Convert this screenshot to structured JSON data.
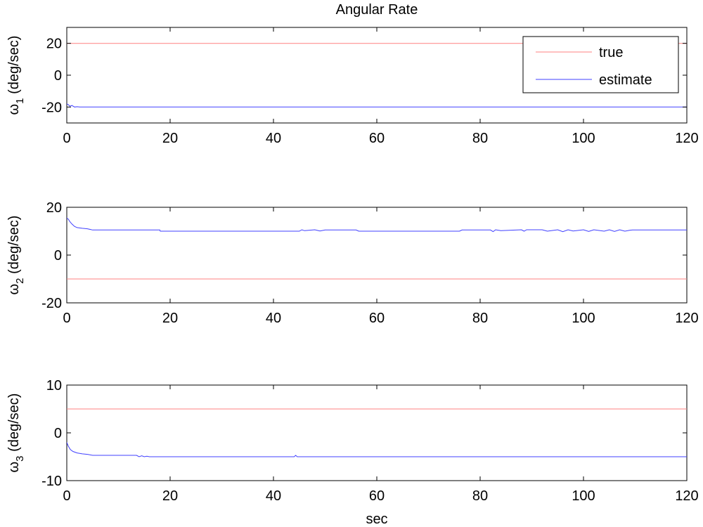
{
  "chart_data": {
    "type": "line",
    "title": "Angular Rate",
    "xlabel": "sec",
    "colors": {
      "true": "#ff8080",
      "estimate": "#4040ff",
      "axis": "#000000"
    },
    "legend": {
      "placement": "top-right",
      "entries": [
        "true",
        "estimate"
      ]
    },
    "panels": [
      {
        "ylabel_symbol": "ω",
        "ylabel_sub": "1",
        "ylabel_unit": "(deg/sec)",
        "xlim": [
          0,
          120
        ],
        "ylim": [
          -30,
          30
        ],
        "xticks": [
          0,
          20,
          40,
          60,
          80,
          100,
          120
        ],
        "yticks": [
          20,
          0,
          -20
        ],
        "series": [
          {
            "name": "true",
            "x": [
              0,
              120
            ],
            "y": [
              20,
              20
            ]
          },
          {
            "name": "estimate",
            "x": [
              0,
              0.3,
              0.6,
              1.0,
              1.5,
              2.0,
              2.5,
              120
            ],
            "y": [
              -18,
              -18.5,
              -19.5,
              -19.0,
              -20.0,
              -19.8,
              -20.0,
              -20.0
            ]
          }
        ]
      },
      {
        "ylabel_symbol": "ω",
        "ylabel_sub": "2",
        "ylabel_unit": "(deg/sec)",
        "xlim": [
          0,
          120
        ],
        "ylim": [
          -20,
          20
        ],
        "xticks": [
          0,
          20,
          40,
          60,
          80,
          100,
          120
        ],
        "yticks": [
          20,
          0,
          -20
        ],
        "series": [
          {
            "name": "true",
            "x": [
              0,
              120
            ],
            "y": [
              -10,
              -10
            ]
          },
          {
            "name": "estimate",
            "x": [
              0,
              0.3,
              0.6,
              1.0,
              1.5,
              2.0,
              3.0,
              4.0,
              5.0,
              18.0,
              18.1,
              45.0,
              45.5,
              46.0,
              48.0,
              49.0,
              50.0,
              56.0,
              56.5,
              57.0,
              76.0,
              76.5,
              82.0,
              82.5,
              83.0,
              84.0,
              88.0,
              88.5,
              89.0,
              92.0,
              93.0,
              95.0,
              96.0,
              97.0,
              98.0,
              100.0,
              101.0,
              102.0,
              104.0,
              105.0,
              106.0,
              107.0,
              108.0,
              109.0,
              109.5,
              120
            ],
            "y": [
              15.5,
              15.0,
              14.0,
              13.0,
              12.0,
              11.5,
              11.2,
              11.0,
              10.5,
              10.5,
              10.0,
              10.0,
              10.6,
              10.2,
              10.6,
              10.1,
              10.5,
              10.5,
              10.0,
              10.0,
              10.0,
              10.5,
              10.5,
              9.8,
              10.6,
              10.2,
              10.6,
              10.0,
              10.6,
              10.6,
              10.0,
              10.6,
              9.8,
              10.6,
              10.1,
              10.6,
              9.9,
              10.6,
              10.0,
              10.6,
              9.9,
              10.6,
              10.0,
              10.4,
              10.5,
              10.5
            ]
          }
        ]
      },
      {
        "ylabel_symbol": "ω",
        "ylabel_sub": "3",
        "ylabel_unit": "(deg/sec)",
        "xlim": [
          0,
          120
        ],
        "ylim": [
          -10,
          10
        ],
        "xticks": [
          0,
          20,
          40,
          60,
          80,
          100,
          120
        ],
        "yticks": [
          10,
          0,
          -10
        ],
        "series": [
          {
            "name": "true",
            "x": [
              0,
              120
            ],
            "y": [
              5,
              5
            ]
          },
          {
            "name": "estimate",
            "x": [
              0,
              0.3,
              0.7,
              1.2,
              2.0,
              3.0,
              4.0,
              5.0,
              13.5,
              14.0,
              14.5,
              15.0,
              15.5,
              16.0,
              44.0,
              44.3,
              44.6,
              45.0,
              120
            ],
            "y": [
              -2.0,
              -2.8,
              -3.5,
              -3.9,
              -4.2,
              -4.4,
              -4.5,
              -4.7,
              -4.7,
              -5.0,
              -4.8,
              -5.0,
              -4.9,
              -5.0,
              -5.0,
              -4.7,
              -5.0,
              -5.0,
              -5.0
            ]
          }
        ]
      }
    ]
  }
}
